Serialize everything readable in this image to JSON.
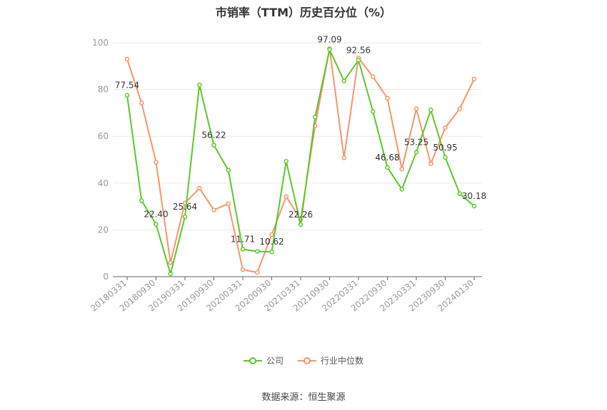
{
  "title": "市销率（TTM）历史百分位（%）",
  "source": "数据来源：恒生聚源",
  "colors": {
    "company": "#5cc72b",
    "industry": "#f5956a",
    "grid": "#e8e8e8",
    "axis": "#999999"
  },
  "chart_data": {
    "type": "line",
    "title": "市销率（TTM）历史百分位（%）",
    "ylim": [
      0,
      100
    ],
    "yticks": [
      0,
      20,
      40,
      60,
      80,
      100
    ],
    "grid": true,
    "legend_position": "bottom",
    "x_tick_labels": [
      "20180331",
      "20180930",
      "20190331",
      "20190930",
      "20200331",
      "20200930",
      "20210331",
      "20210930",
      "20220331",
      "20220930",
      "20230331",
      "20230930",
      "20240130"
    ],
    "x": [
      "20180331",
      "20180630",
      "20180930",
      "20181231",
      "20190331",
      "20190630",
      "20190930",
      "20191231",
      "20200331",
      "20200630",
      "20200930",
      "20201231",
      "20210331",
      "20210630",
      "20210930",
      "20211231",
      "20220331",
      "20220630",
      "20220930",
      "20221231",
      "20230331",
      "20230630",
      "20230930",
      "20231231",
      "20240130"
    ],
    "series": [
      {
        "name": "公司",
        "values": [
          77.54,
          32.5,
          22.4,
          1.2,
          25.64,
          82.0,
          56.22,
          45.5,
          11.71,
          10.8,
          10.62,
          49.3,
          22.26,
          68.3,
          97.09,
          83.7,
          92.56,
          70.6,
          46.68,
          37.4,
          53.25,
          71.3,
          50.95,
          35.5,
          30.18
        ],
        "labels": {
          "0": "77.54",
          "2": "22.40",
          "4": "25.64",
          "6": "56.22",
          "8": "11.71",
          "10": "10.62",
          "12": "22.26",
          "14": "97.09",
          "16": "92.56",
          "18": "46.68",
          "20": "53.25",
          "22": "50.95",
          "24": "30.18"
        }
      },
      {
        "name": "行业中位数",
        "values": [
          93.0,
          74.3,
          49.0,
          6.0,
          31.5,
          37.8,
          28.5,
          31.2,
          3.0,
          1.8,
          18.0,
          34.2,
          24.5,
          64.5,
          97.5,
          50.8,
          93.5,
          85.5,
          76.3,
          46.0,
          71.8,
          48.3,
          63.7,
          71.8,
          84.5
        ]
      }
    ]
  }
}
